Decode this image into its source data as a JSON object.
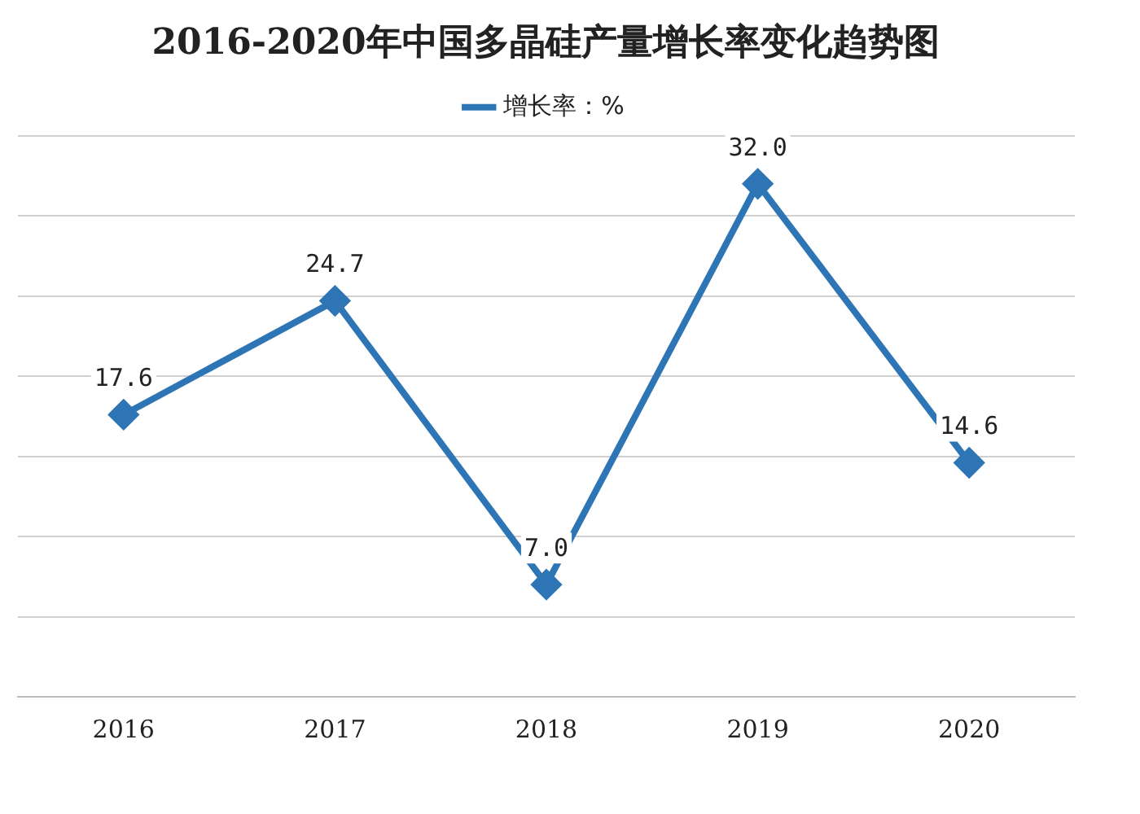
{
  "chart_data": {
    "type": "line",
    "title": "2016-2020年中国多晶硅产量增长率变化趋势图",
    "categories": [
      "2016",
      "2017",
      "2018",
      "2019",
      "2020"
    ],
    "series": [
      {
        "name": "增长率：%",
        "color": "#2e75b6",
        "values": [
          17.6,
          24.7,
          7.0,
          32.0,
          14.6
        ],
        "value_labels": [
          "17.6",
          "24.7",
          "7.0",
          "32.0",
          "14.6"
        ]
      }
    ],
    "ylim": [
      0,
      35
    ],
    "yticks": [
      {
        "value": 0,
        "label": null
      },
      {
        "value": 5,
        "label": null
      },
      {
        "value": 10,
        "label": null
      },
      {
        "value": 15,
        "label": null
      },
      {
        "value": 20,
        "label": null
      },
      {
        "value": 25,
        "label": null
      },
      {
        "value": 30,
        "label": null
      },
      {
        "value": 35,
        "label": null
      }
    ],
    "tick_labels": "x",
    "grid": "y",
    "legend": "top",
    "marker": "diamond",
    "line_style": "solid"
  }
}
